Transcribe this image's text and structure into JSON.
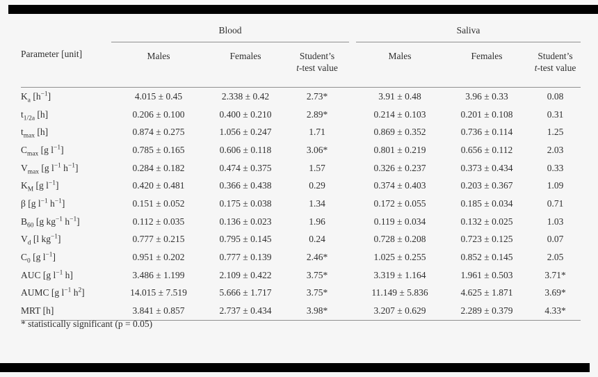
{
  "theme": {
    "background": "#f6f6f6",
    "text": "#2f2f2f",
    "rule": "#8f8f8f",
    "bar": "#000000"
  },
  "table": {
    "corner_header": "Parameter [unit]",
    "groups": [
      {
        "label": "Blood",
        "columns": [
          {
            "label_html": "Males"
          },
          {
            "label_html": "Females"
          },
          {
            "label_html": "Student’s<br><i>t</i>-test value"
          }
        ]
      },
      {
        "label": "Saliva",
        "columns": [
          {
            "label_html": "Males"
          },
          {
            "label_html": "Females"
          },
          {
            "label_html": "Student’s<br><i>t</i>-test value"
          }
        ]
      }
    ],
    "rows": [
      {
        "param_html": "K<sub>a</sub> [h<sup>−1</sup>]",
        "values": [
          "4.015 ± 0.45",
          "2.338 ± 0.42",
          "2.73*",
          "3.91 ± 0.48",
          "3.96 ± 0.33",
          "0.08"
        ]
      },
      {
        "param_html": "t<sub>1/2a</sub> [h]",
        "values": [
          "0.206 ± 0.100",
          "0.400 ± 0.210",
          "2.89*",
          "0.214 ± 0.103",
          "0.201 ± 0.108",
          "0.31"
        ]
      },
      {
        "param_html": "t<sub>max</sub> [h]",
        "values": [
          "0.874 ± 0.275",
          "1.056 ± 0.247",
          "1.71",
          "0.869 ± 0.352",
          "0.736 ± 0.114",
          "1.25"
        ]
      },
      {
        "param_html": "C<sub>max</sub> [g l<sup>−1</sup>]",
        "values": [
          "0.785 ± 0.165",
          "0.606 ± 0.118",
          "3.06*",
          "0.801 ± 0.219",
          "0.656 ± 0.112",
          "2.03"
        ]
      },
      {
        "param_html": "V<sub>max</sub> [g l<sup>−1</sup> h<sup>−1</sup>]",
        "values": [
          "0.284 ± 0.182",
          "0.474 ± 0.375",
          "1.57",
          "0.326 ± 0.237",
          "0.373 ± 0.434",
          "0.33"
        ]
      },
      {
        "param_html": "K<sub>M</sub> [g l<sup>−1</sup>]",
        "values": [
          "0.420 ± 0.481",
          "0.366 ± 0.438",
          "0.29",
          "0.374 ± 0.403",
          "0.203 ± 0.367",
          "1.09"
        ]
      },
      {
        "param_html": "β [g l<sup>−1</sup> h<sup>−1</sup>]",
        "values": [
          "0.151 ± 0.052",
          "0.175 ± 0.038",
          "1.34",
          "0.172 ± 0.055",
          "0.185 ± 0.034",
          "0.71"
        ]
      },
      {
        "param_html": "B<sub>60</sub> [g kg<sup>−1</sup> h<sup>−1</sup>]",
        "values": [
          "0.112 ± 0.035",
          "0.136 ± 0.023",
          "1.96",
          "0.119 ± 0.034",
          "0.132 ± 0.025",
          "1.03"
        ]
      },
      {
        "param_html": "V<sub>d</sub> [l kg<sup>−1</sup>]",
        "values": [
          "0.777 ± 0.215",
          "0.795 ± 0.145",
          "0.24",
          "0.728 ± 0.208",
          "0.723 ± 0.125",
          "0.07"
        ]
      },
      {
        "param_html": "C<sub>0</sub> [g l<sup>−1</sup>]",
        "values": [
          "0.951 ± 0.202",
          "0.777 ± 0.139",
          "2.46*",
          "1.025 ± 0.255",
          "0.852 ± 0.145",
          "2.05"
        ]
      },
      {
        "param_html": "AUC [g l<sup>−1</sup> h]",
        "values": [
          "3.486 ± 1.199",
          "2.109 ± 0.422",
          "3.75*",
          "3.319 ± 1.164",
          "1.961 ± 0.503",
          "3.71*"
        ]
      },
      {
        "param_html": "AUMC [g l<sup>−1</sup> h<sup>2</sup>]",
        "values": [
          "14.015 ± 7.519",
          "5.666 ± 1.717",
          "3.75*",
          "11.149 ± 5.836",
          "4.625 ± 1.871",
          "3.69*"
        ]
      },
      {
        "param_html": "MRT [h]",
        "values": [
          "3.841 ± 0.857",
          "2.737 ± 0.434",
          "3.98*",
          "3.207 ± 0.629",
          "2.289 ± 0.379",
          "4.33*"
        ]
      }
    ],
    "footnote": "* statistically significant (p = 0.05)"
  }
}
